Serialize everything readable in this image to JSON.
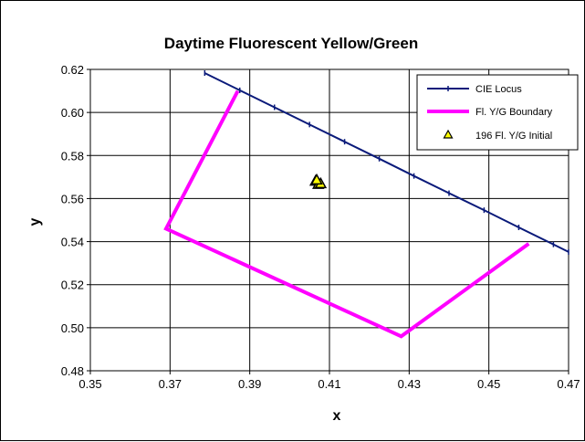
{
  "chart_data": {
    "type": "scatter",
    "title": "Daytime Fluorescent Yellow/Green",
    "xlabel": "x",
    "ylabel": "y",
    "xlim": [
      0.35,
      0.47
    ],
    "ylim": [
      0.48,
      0.62
    ],
    "x_ticks": [
      "0.35",
      "0.37",
      "0.39",
      "0.41",
      "0.43",
      "0.45",
      "0.47"
    ],
    "y_ticks": [
      "0.48",
      "0.50",
      "0.52",
      "0.54",
      "0.56",
      "0.58",
      "0.60",
      "0.62"
    ],
    "x_tick_values": [
      0.35,
      0.37,
      0.39,
      0.41,
      0.43,
      0.45,
      0.47
    ],
    "y_tick_values": [
      0.48,
      0.5,
      0.52,
      0.54,
      0.56,
      0.58,
      0.6,
      0.62
    ],
    "grid": true,
    "legend_position": "top-right",
    "series": [
      {
        "name": "CIE Locus",
        "style": "line-with-markers",
        "color": "#0a1a7a",
        "x": [
          0.3787,
          0.3875,
          0.3962,
          0.405,
          0.4138,
          0.4225,
          0.4312,
          0.44,
          0.4488,
          0.4575,
          0.4662,
          0.47
        ],
        "y": [
          0.6183,
          0.6103,
          0.6024,
          0.5944,
          0.5864,
          0.5785,
          0.5705,
          0.5625,
          0.5546,
          0.5466,
          0.5387,
          0.5352
        ]
      },
      {
        "name": "Fl. Y/G Boundary",
        "style": "line",
        "color": "#ff00ff",
        "x": [
          0.387,
          0.369,
          0.428,
          0.46
        ],
        "y": [
          0.61,
          0.546,
          0.496,
          0.539
        ]
      },
      {
        "name": "196 Fl. Y/G Initial",
        "style": "triangle-markers",
        "color": "#ffff00",
        "x": [
          0.4065,
          0.4072,
          0.4078,
          0.4068
        ],
        "y": [
          0.568,
          0.5665,
          0.5668,
          0.5685
        ]
      }
    ]
  }
}
